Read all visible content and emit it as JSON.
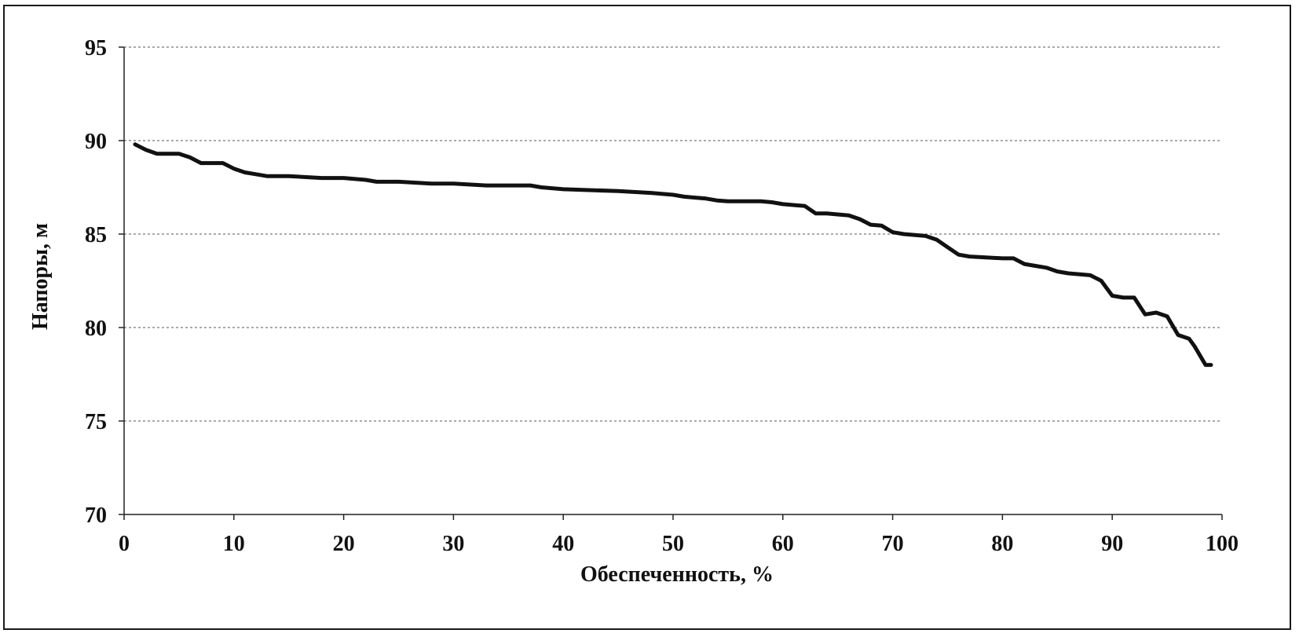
{
  "chart_data": {
    "type": "line",
    "title": "",
    "xlabel": "Обеспеченность, %",
    "ylabel": "Напоры, м",
    "xlim": [
      0,
      100
    ],
    "ylim": [
      70,
      95
    ],
    "x_ticks": [
      "0",
      "10",
      "20",
      "30",
      "40",
      "50",
      "60",
      "70",
      "80",
      "90",
      "100"
    ],
    "y_ticks": [
      "95",
      "90",
      "85",
      "80",
      "75",
      "70"
    ],
    "grid": true,
    "colors": {
      "line": "#111111",
      "grid": "#777777"
    },
    "series": [
      {
        "x": [
          1,
          2,
          3,
          5,
          6,
          7,
          9,
          10,
          11,
          12,
          13,
          15,
          18,
          20,
          22,
          23,
          25,
          28,
          30,
          33,
          37,
          38,
          40,
          45,
          48,
          50,
          51,
          52,
          53,
          54,
          55,
          58,
          59,
          60,
          62,
          63,
          64,
          66,
          67,
          68,
          69,
          70,
          71,
          73,
          74,
          75,
          76,
          77,
          80,
          81,
          82,
          83,
          84,
          85,
          86,
          88,
          89,
          90,
          91,
          92,
          93,
          94,
          95,
          96,
          97,
          97.5,
          98,
          98.5,
          99
        ],
        "y": [
          89.8,
          89.5,
          89.3,
          89.3,
          89.1,
          88.8,
          88.8,
          88.5,
          88.3,
          88.2,
          88.1,
          88.1,
          88.0,
          88.0,
          87.9,
          87.8,
          87.8,
          87.7,
          87.7,
          87.6,
          87.6,
          87.5,
          87.4,
          87.3,
          87.2,
          87.1,
          87.0,
          86.95,
          86.9,
          86.8,
          86.75,
          86.75,
          86.7,
          86.6,
          86.5,
          86.1,
          86.1,
          86.0,
          85.8,
          85.5,
          85.45,
          85.1,
          85.0,
          84.9,
          84.7,
          84.3,
          83.9,
          83.8,
          83.7,
          83.7,
          83.4,
          83.3,
          83.2,
          83.0,
          82.9,
          82.8,
          82.5,
          81.7,
          81.6,
          81.6,
          80.7,
          80.8,
          80.6,
          79.6,
          79.4,
          79.0,
          78.5,
          78.0,
          78.0
        ]
      }
    ]
  }
}
